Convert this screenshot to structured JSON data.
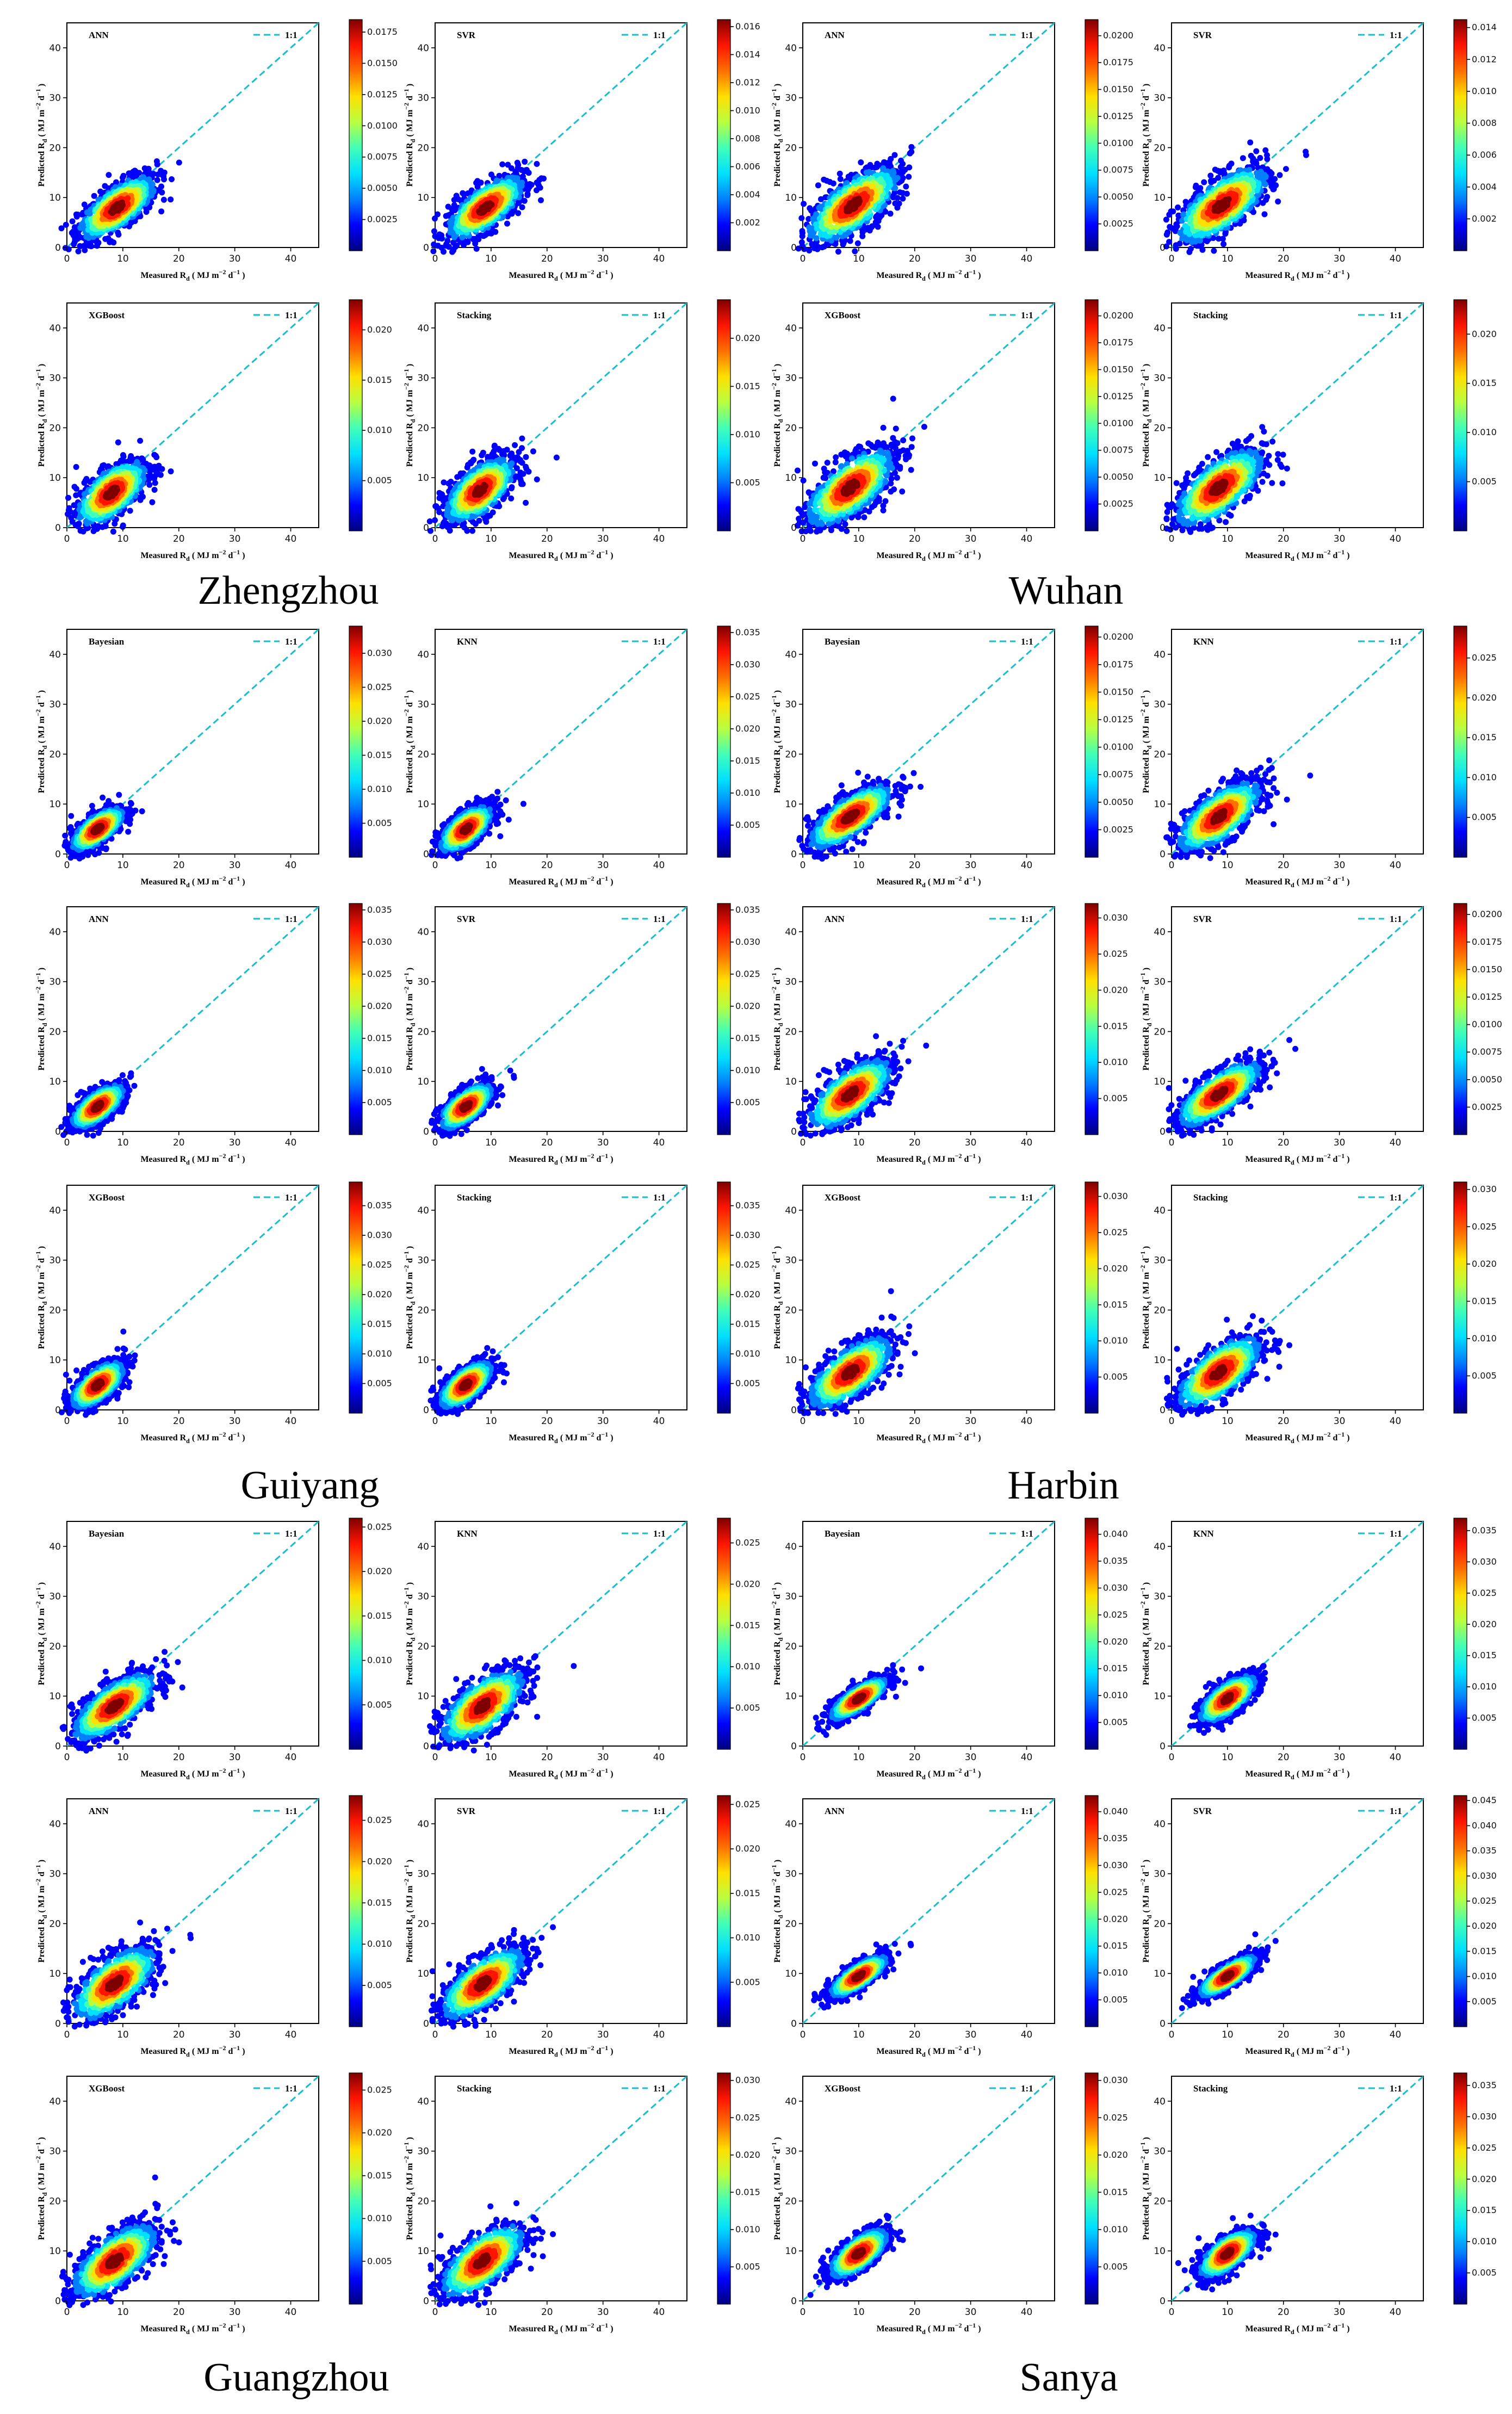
{
  "figure": {
    "colors": {
      "ref_line": "#17becf",
      "axes": "#000000",
      "background": "#ffffff"
    },
    "colormap": [
      "#00007f",
      "#0000ff",
      "#0080ff",
      "#00e0ff",
      "#40ffb8",
      "#b8ff40",
      "#ffe000",
      "#ff7000",
      "#ff1400",
      "#7f0000"
    ],
    "xlabel": "Measured R",
    "xlabel_sub": "d",
    "xlabel_units": "( MJ m",
    "xlabel_exp1": "−2",
    "xlabel_mid": "d",
    "xlabel_exp2": "−1",
    "xlabel_end": ")",
    "ylabel": "Predicted R",
    "ylabel_sub": "d",
    "ylabel_units": "( MJ m",
    "ylabel_exp1": "−2",
    "ylabel_mid": "d",
    "ylabel_exp2": "−1",
    "ylabel_end": ")",
    "legend_label": "1:1",
    "axis_ticks": [
      "0",
      "10",
      "20",
      "30",
      "40"
    ]
  },
  "chart_data": [
    {
      "type": "scatter",
      "city": "Zhengzhou",
      "xlim": [
        0,
        45
      ],
      "ylim": [
        0,
        45
      ],
      "panels": [
        {
          "model": "ANN",
          "center": [
            9,
            8
          ],
          "spread": [
            3.5,
            2.3
          ],
          "cbar_ticks": [
            "0.0175",
            "0.0150",
            "0.0125",
            "0.0100",
            "0.0075",
            "0.0050",
            "0.0025"
          ],
          "cbar_max": 0.0185
        },
        {
          "model": "SVR",
          "center": [
            9,
            8
          ],
          "spread": [
            3.5,
            2.3
          ],
          "cbar_ticks": [
            "0.016",
            "0.014",
            "0.012",
            "0.010",
            "0.008",
            "0.006",
            "0.004",
            "0.002"
          ],
          "cbar_max": 0.0165
        },
        {
          "model": "XGBoost",
          "center": [
            8,
            7
          ],
          "spread": [
            3.2,
            2.6
          ],
          "cbar_ticks": [
            "0.020",
            "0.015",
            "0.010",
            "0.005"
          ],
          "cbar_max": 0.023
        },
        {
          "model": "Stacking",
          "center": [
            8,
            7.5
          ],
          "spread": [
            3.2,
            2.6
          ],
          "cbar_ticks": [
            "0.020",
            "0.015",
            "0.010",
            "0.005"
          ],
          "cbar_max": 0.024
        }
      ]
    },
    {
      "type": "scatter",
      "city": "Wuhan",
      "xlim": [
        0,
        45
      ],
      "ylim": [
        0,
        45
      ],
      "panels": [
        {
          "model": "ANN",
          "center": [
            9,
            8.5
          ],
          "spread": [
            4.2,
            2.8
          ],
          "cbar_ticks": [
            "0.0200",
            "0.0175",
            "0.0150",
            "0.0125",
            "0.0100",
            "0.0075",
            "0.0050",
            "0.0025"
          ],
          "cbar_max": 0.0215
        },
        {
          "model": "SVR",
          "center": [
            9,
            8.5
          ],
          "spread": [
            4.2,
            2.8
          ],
          "cbar_ticks": [
            "0.014",
            "0.012",
            "0.010",
            "0.008",
            "0.006",
            "0.004",
            "0.002"
          ],
          "cbar_max": 0.0145
        },
        {
          "model": "XGBoost",
          "center": [
            8.5,
            8
          ],
          "spread": [
            4.0,
            3.0
          ],
          "cbar_ticks": [
            "0.0200",
            "0.0175",
            "0.0150",
            "0.0125",
            "0.0100",
            "0.0075",
            "0.0050",
            "0.0025"
          ],
          "cbar_max": 0.0215
        },
        {
          "model": "Stacking",
          "center": [
            8.5,
            8
          ],
          "spread": [
            4.0,
            3.0
          ],
          "cbar_ticks": [
            "0.020",
            "0.015",
            "0.010",
            "0.005"
          ],
          "cbar_max": 0.0235
        }
      ]
    },
    {
      "type": "scatter",
      "city": "Guiyang",
      "xlim": [
        0,
        45
      ],
      "ylim": [
        0,
        45
      ],
      "panels": [
        {
          "model": "Bayesian",
          "center": [
            5.5,
            5
          ],
          "spread": [
            2.4,
            1.6
          ],
          "cbar_ticks": [
            "0.030",
            "0.025",
            "0.020",
            "0.015",
            "0.010",
            "0.005"
          ],
          "cbar_max": 0.034
        },
        {
          "model": "KNN",
          "center": [
            5.5,
            5
          ],
          "spread": [
            2.4,
            1.8
          ],
          "cbar_ticks": [
            "0.035",
            "0.030",
            "0.025",
            "0.020",
            "0.015",
            "0.010",
            "0.005"
          ],
          "cbar_max": 0.036
        },
        {
          "model": "ANN",
          "center": [
            5.5,
            5
          ],
          "spread": [
            2.4,
            1.6
          ],
          "cbar_ticks": [
            "0.035",
            "0.030",
            "0.025",
            "0.020",
            "0.015",
            "0.010",
            "0.005"
          ],
          "cbar_max": 0.036
        },
        {
          "model": "SVR",
          "center": [
            5.5,
            5
          ],
          "spread": [
            2.4,
            1.7
          ],
          "cbar_ticks": [
            "0.035",
            "0.030",
            "0.025",
            "0.020",
            "0.015",
            "0.010",
            "0.005"
          ],
          "cbar_max": 0.036
        },
        {
          "model": "XGBoost",
          "center": [
            5.5,
            5
          ],
          "spread": [
            2.4,
            1.8
          ],
          "cbar_ticks": [
            "0.035",
            "0.030",
            "0.025",
            "0.020",
            "0.015",
            "0.010",
            "0.005"
          ],
          "cbar_max": 0.039
        },
        {
          "model": "Stacking",
          "center": [
            5.5,
            5
          ],
          "spread": [
            2.4,
            1.8
          ],
          "cbar_ticks": [
            "0.035",
            "0.030",
            "0.025",
            "0.020",
            "0.015",
            "0.010",
            "0.005"
          ],
          "cbar_max": 0.039
        }
      ]
    },
    {
      "type": "scatter",
      "city": "Harbin",
      "xlim": [
        0,
        45
      ],
      "ylim": [
        0,
        45
      ],
      "panels": [
        {
          "model": "Bayesian",
          "center": [
            8.5,
            7.5
          ],
          "spread": [
            3.8,
            2.2
          ],
          "cbar_ticks": [
            "0.0200",
            "0.0175",
            "0.0150",
            "0.0125",
            "0.0100",
            "0.0075",
            "0.0050",
            "0.0025"
          ],
          "cbar_max": 0.021
        },
        {
          "model": "KNN",
          "center": [
            8.5,
            7.5
          ],
          "spread": [
            3.8,
            2.6
          ],
          "cbar_ticks": [
            "0.025",
            "0.020",
            "0.015",
            "0.010",
            "0.005"
          ],
          "cbar_max": 0.029
        },
        {
          "model": "ANN",
          "center": [
            8.5,
            7.5
          ],
          "spread": [
            3.8,
            2.6
          ],
          "cbar_ticks": [
            "0.030",
            "0.025",
            "0.020",
            "0.015",
            "0.010",
            "0.005"
          ],
          "cbar_max": 0.032
        },
        {
          "model": "SVR",
          "center": [
            8.5,
            7.5
          ],
          "spread": [
            3.8,
            2.2
          ],
          "cbar_ticks": [
            "0.0200",
            "0.0175",
            "0.0150",
            "0.0125",
            "0.0100",
            "0.0075",
            "0.0050",
            "0.0025"
          ],
          "cbar_max": 0.021
        },
        {
          "model": "XGBoost",
          "center": [
            8.5,
            7.5
          ],
          "spread": [
            3.8,
            2.7
          ],
          "cbar_ticks": [
            "0.030",
            "0.025",
            "0.020",
            "0.015",
            "0.010",
            "0.005"
          ],
          "cbar_max": 0.032
        },
        {
          "model": "Stacking",
          "center": [
            8.5,
            7.5
          ],
          "spread": [
            3.8,
            2.7
          ],
          "cbar_ticks": [
            "0.030",
            "0.025",
            "0.020",
            "0.015",
            "0.010",
            "0.005"
          ],
          "cbar_max": 0.031
        }
      ]
    },
    {
      "type": "scatter",
      "city": "Guangzhou",
      "xlim": [
        0,
        45
      ],
      "ylim": [
        0,
        45
      ],
      "panels": [
        {
          "model": "Bayesian",
          "center": [
            8.5,
            8
          ],
          "spread": [
            3.8,
            2.4
          ],
          "cbar_ticks": [
            "0.025",
            "0.020",
            "0.015",
            "0.010",
            "0.005"
          ],
          "cbar_max": 0.026
        },
        {
          "model": "KNN",
          "center": [
            8.5,
            8
          ],
          "spread": [
            3.8,
            2.8
          ],
          "cbar_ticks": [
            "0.025",
            "0.020",
            "0.015",
            "0.010",
            "0.005"
          ],
          "cbar_max": 0.028
        },
        {
          "model": "ANN",
          "center": [
            8.5,
            8
          ],
          "spread": [
            3.8,
            2.8
          ],
          "cbar_ticks": [
            "0.025",
            "0.020",
            "0.015",
            "0.010",
            "0.005"
          ],
          "cbar_max": 0.028
        },
        {
          "model": "SVR",
          "center": [
            8.5,
            8
          ],
          "spread": [
            3.8,
            2.6
          ],
          "cbar_ticks": [
            "0.025",
            "0.020",
            "0.015",
            "0.010",
            "0.005"
          ],
          "cbar_max": 0.026
        },
        {
          "model": "XGBoost",
          "center": [
            8.5,
            8
          ],
          "spread": [
            3.8,
            2.8
          ],
          "cbar_ticks": [
            "0.025",
            "0.020",
            "0.015",
            "0.010",
            "0.005"
          ],
          "cbar_max": 0.027
        },
        {
          "model": "Stacking",
          "center": [
            8.5,
            8
          ],
          "spread": [
            3.8,
            2.8
          ],
          "cbar_ticks": [
            "0.030",
            "0.025",
            "0.020",
            "0.015",
            "0.010",
            "0.005"
          ],
          "cbar_max": 0.031
        }
      ]
    },
    {
      "type": "scatter",
      "city": "Sanya",
      "xlim": [
        0,
        45
      ],
      "ylim": [
        0,
        45
      ],
      "panels": [
        {
          "model": "Bayesian",
          "center": [
            10,
            9.5
          ],
          "spread": [
            2.6,
            1.3
          ],
          "cbar_ticks": [
            "0.040",
            "0.035",
            "0.030",
            "0.025",
            "0.020",
            "0.015",
            "0.010",
            "0.005"
          ],
          "cbar_max": 0.043
        },
        {
          "model": "KNN",
          "center": [
            10,
            9.5
          ],
          "spread": [
            2.6,
            1.7
          ],
          "cbar_ticks": [
            "0.035",
            "0.030",
            "0.025",
            "0.020",
            "0.015",
            "0.010",
            "0.005"
          ],
          "cbar_max": 0.037
        },
        {
          "model": "ANN",
          "center": [
            10,
            9.5
          ],
          "spread": [
            2.6,
            1.3
          ],
          "cbar_ticks": [
            "0.040",
            "0.035",
            "0.030",
            "0.025",
            "0.020",
            "0.015",
            "0.010",
            "0.005"
          ],
          "cbar_max": 0.043
        },
        {
          "model": "SVR",
          "center": [
            10,
            9.5
          ],
          "spread": [
            2.6,
            1.2
          ],
          "cbar_ticks": [
            "0.045",
            "0.040",
            "0.035",
            "0.030",
            "0.025",
            "0.020",
            "0.015",
            "0.010",
            "0.005"
          ],
          "cbar_max": 0.046
        },
        {
          "model": "XGBoost",
          "center": [
            10,
            9.5
          ],
          "spread": [
            2.6,
            1.8
          ],
          "cbar_ticks": [
            "0.030",
            "0.025",
            "0.020",
            "0.015",
            "0.010",
            "0.005"
          ],
          "cbar_max": 0.031
        },
        {
          "model": "Stacking",
          "center": [
            10,
            9.5
          ],
          "spread": [
            2.6,
            1.8
          ],
          "cbar_ticks": [
            "0.035",
            "0.030",
            "0.025",
            "0.020",
            "0.015",
            "0.010",
            "0.005"
          ],
          "cbar_max": 0.037
        }
      ]
    }
  ]
}
